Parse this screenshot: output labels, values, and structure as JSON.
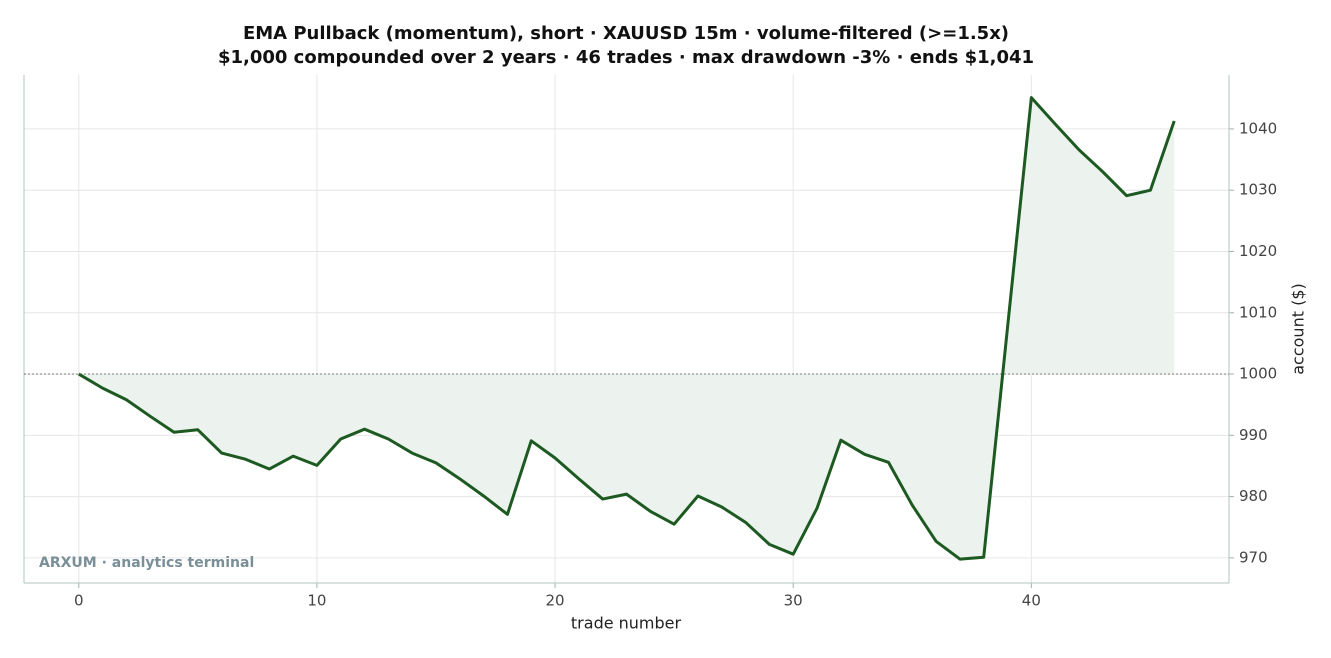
{
  "chart_data": {
    "type": "line",
    "title": "EMA Pullback (momentum), short · XAUUSD 15m · volume-filtered (>=1.5x)",
    "subtitle": "$1,000 compounded over 2 years · 46 trades · max drawdown -3% · ends $1,041",
    "xlabel": "trade number",
    "ylabel": "account ($)",
    "watermark": "ARXUM · analytics terminal",
    "x": [
      0,
      1,
      2,
      3,
      4,
      5,
      6,
      7,
      8,
      9,
      10,
      11,
      12,
      13,
      14,
      15,
      16,
      17,
      18,
      19,
      20,
      21,
      22,
      23,
      24,
      25,
      26,
      27,
      28,
      29,
      30,
      31,
      32,
      33,
      34,
      35,
      36,
      37,
      38,
      39,
      40,
      41,
      42,
      43,
      44,
      45,
      46
    ],
    "series": [
      {
        "name": "account",
        "color": "#1d5a22",
        "fill": "#ecf2ed",
        "values": [
          1000,
          997.7,
          995.8,
          993.1,
          990.5,
          990.9,
          987.1,
          986.1,
          984.5,
          986.6,
          985.1,
          989.4,
          991.0,
          989.4,
          987.1,
          985.5,
          982.9,
          980.1,
          977.1,
          989.1,
          986.3,
          982.9,
          979.6,
          980.4,
          977.6,
          975.5,
          980.1,
          978.3,
          975.8,
          972.2,
          970.6,
          978.1,
          989.2,
          986.9,
          985.6,
          978.6,
          972.7,
          969.8,
          970.1,
          1007.6,
          1045.1,
          1040.8,
          1036.6,
          1033.0,
          1029.1,
          1030.0,
          1041.3
        ]
      }
    ],
    "baseline": 1000,
    "xlim": [
      -2.3,
      48.3
    ],
    "ylim": [
      965.9,
      1048.8
    ],
    "xticks": [
      0,
      10,
      20,
      30,
      40
    ],
    "yticks": [
      970,
      980,
      990,
      1000,
      1010,
      1020,
      1030,
      1040
    ],
    "grid": true
  }
}
